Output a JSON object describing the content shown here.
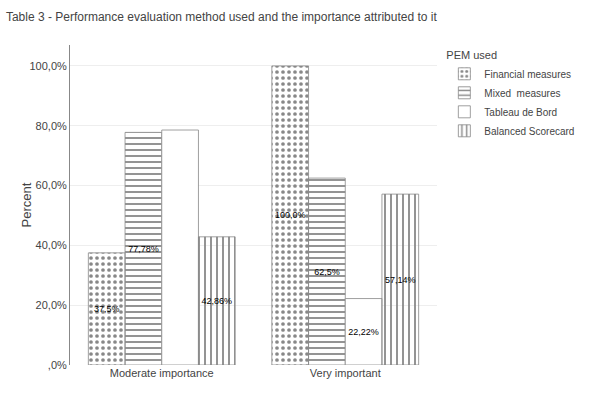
{
  "chart_data": {
    "type": "bar",
    "title": "Table 3 - Performance evaluation method used and the importance attributed to it",
    "ylabel": "Percent",
    "categories": [
      "Moderate importance",
      "Very important"
    ],
    "series": [
      {
        "name": "Financial measures",
        "color": "#d8d8d8",
        "values": [
          37.5,
          100.0
        ],
        "value_labels": [
          "37,5%",
          "100,0%"
        ]
      },
      {
        "name": "Mixed  measures",
        "color": "#d0d0d0",
        "values": [
          77.78,
          62.5
        ],
        "value_labels": [
          "77,78%",
          "62,5%"
        ]
      },
      {
        "name": "Tableau de Bord",
        "color": "#ffffff",
        "values": [
          78.57,
          22.22
        ],
        "value_labels": [
          null,
          "22,22%"
        ]
      },
      {
        "name": "Balanced Scorecard",
        "color": "#c0c0c0",
        "values": [
          42.86,
          57.14
        ],
        "value_labels": [
          "42,86%",
          "57,14%"
        ]
      }
    ],
    "ylim": [
      0,
      107
    ],
    "yticks": [
      {
        "value": 0,
        "label": ",0%"
      },
      {
        "value": 20,
        "label": "20,0%"
      },
      {
        "value": 40,
        "label": "40,0%"
      },
      {
        "value": 60,
        "label": "60,0%"
      },
      {
        "value": 80,
        "label": "80,0%"
      },
      {
        "value": 100,
        "label": "100,0%"
      }
    ],
    "grid": true,
    "legend": "right",
    "legend_title": "PEM used",
    "data_labels": true
  }
}
